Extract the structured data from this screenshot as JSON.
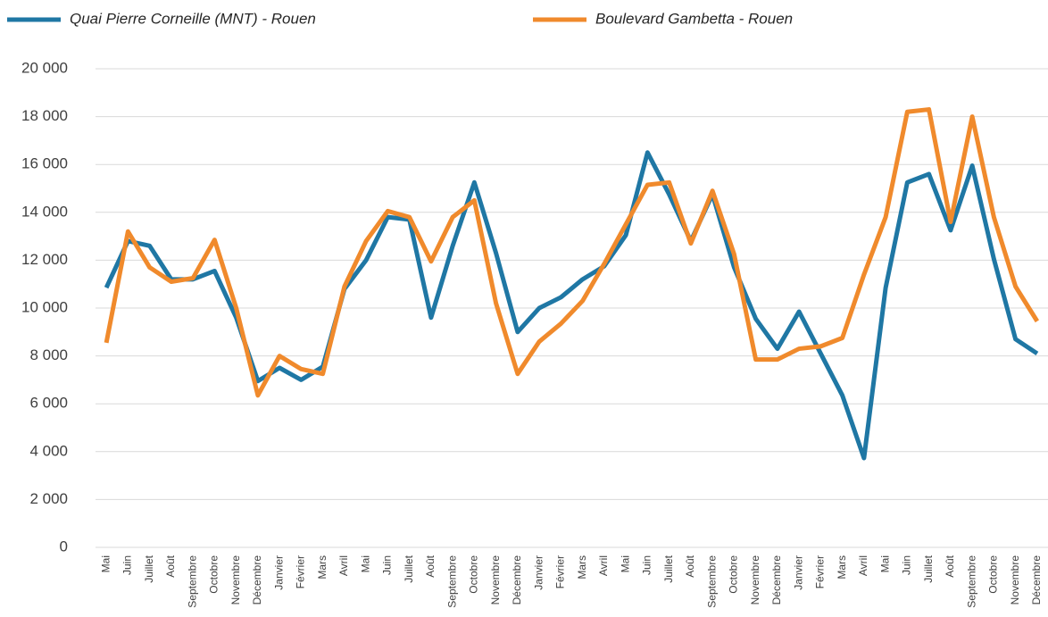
{
  "chart_data": {
    "type": "line",
    "categories": [
      "Mai",
      "Juin",
      "Juillet",
      "Août",
      "Septembre",
      "Octobre",
      "Novembre",
      "Décembre",
      "Janvier",
      "Février",
      "Mars",
      "Avril",
      "Mai",
      "Juin",
      "Juillet",
      "Août",
      "Septembre",
      "Octobre",
      "Novembre",
      "Décembre",
      "Janvier",
      "Février",
      "Mars",
      "Avril",
      "Mai",
      "Juin",
      "Juillet",
      "Août",
      "Septembre",
      "Octobre",
      "Novembre",
      "Décembre",
      "Janvier",
      "Février",
      "Mars",
      "Avril",
      "Mai",
      "Juin",
      "Juillet",
      "Août",
      "Septembre",
      "Octobre",
      "Novembre",
      "Décembre"
    ],
    "series": [
      {
        "name": "Quai Pierre Corneille (MNT) - Rouen",
        "color": "#1f77a4",
        "values": [
          10850,
          12800,
          12600,
          11200,
          11200,
          11550,
          9600,
          6950,
          7500,
          7000,
          7550,
          10800,
          12000,
          13800,
          13700,
          9600,
          12600,
          15250,
          12300,
          9000,
          10000,
          10450,
          11200,
          11750,
          13050,
          16500,
          14750,
          12800,
          14750,
          11700,
          9550,
          8300,
          9850,
          8100,
          6350,
          3730,
          10850,
          15250,
          15600,
          13250,
          15950,
          12050,
          8700,
          8100
        ]
      },
      {
        "name": "Boulevard Gambetta - Rouen",
        "color": "#f08a2c",
        "values": [
          8550,
          13200,
          11700,
          11100,
          11250,
          12850,
          10000,
          6350,
          8000,
          7450,
          7250,
          10900,
          12800,
          14050,
          13800,
          11950,
          13800,
          14500,
          10200,
          7250,
          8600,
          9350,
          10300,
          11850,
          13500,
          15150,
          15250,
          12700,
          14900,
          12250,
          7850,
          7850,
          8300,
          8400,
          8750,
          11400,
          13800,
          18200,
          18300,
          13600,
          18000,
          13800,
          10900,
          9450
        ]
      }
    ],
    "ylim": [
      0,
      20000
    ],
    "yticks": [
      0,
      {
        "value": 2000,
        "label": "2 000"
      },
      {
        "value": 4000,
        "label": "4 000"
      },
      {
        "value": 6000,
        "label": "6 000"
      },
      {
        "value": 8000,
        "label": "8 000"
      },
      {
        "value": 10000,
        "label": "10 000"
      },
      {
        "value": 12000,
        "label": "12 000"
      },
      {
        "value": 14000,
        "label": "14 000"
      },
      {
        "value": 16000,
        "label": "16 000"
      },
      {
        "value": 18000,
        "label": "18 000"
      },
      {
        "value": 20000,
        "label": "20 000"
      }
    ],
    "grid": true,
    "legend": "top"
  }
}
